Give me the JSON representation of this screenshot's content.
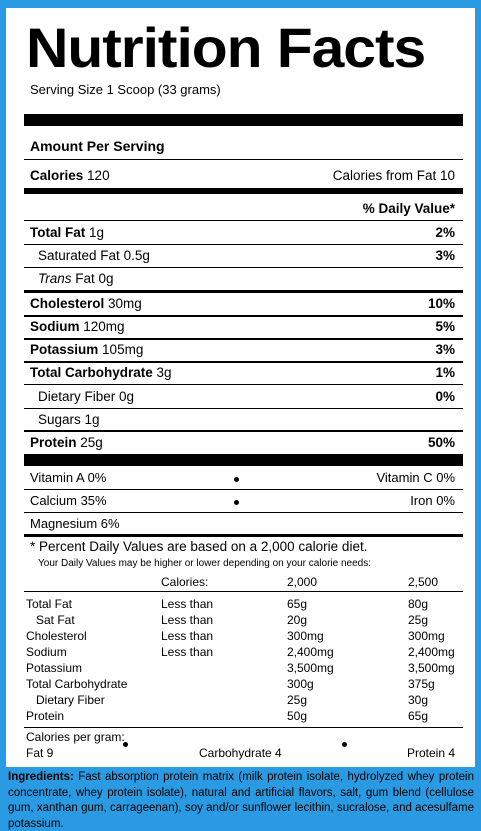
{
  "title": "Nutrition Facts",
  "serving_size": "Serving Size 1 Scoop (33 grams)",
  "amount_per_serving": "Amount Per Serving",
  "calories_label": "Calories",
  "calories_value": "120",
  "calories_from_fat": "Calories from Fat 10",
  "daily_value_header": "% Daily Value*",
  "nutrients": [
    {
      "label": "Total Fat",
      "amount": "1g",
      "dv": "2%"
    },
    {
      "label": "Saturated Fat",
      "amount": "0.5g",
      "dv": "3%"
    },
    {
      "label": "Trans",
      "amount": "Fat 0g",
      "dv": ""
    },
    {
      "label": "Cholesterol",
      "amount": "30mg",
      "dv": "10%"
    },
    {
      "label": "Sodium",
      "amount": "120mg",
      "dv": "5%"
    },
    {
      "label": "Potassium",
      "amount": "105mg",
      "dv": "3%"
    },
    {
      "label": "Total Carbohydrate",
      "amount": "3g",
      "dv": "1%"
    },
    {
      "label": "Dietary Fiber",
      "amount": "0g",
      "dv": "0%"
    },
    {
      "label": "Sugars",
      "amount": "1g",
      "dv": ""
    },
    {
      "label": "Protein",
      "amount": "25g",
      "dv": "50%"
    }
  ],
  "vitamins": {
    "vitamin_a": "Vitamin A 0%",
    "vitamin_c": "Vitamin C 0%",
    "calcium": "Calcium 35%",
    "iron": "Iron 0%",
    "magnesium": "Magnesium 6%"
  },
  "footnote_main": "* Percent Daily Values are based on a 2,000 calorie diet.",
  "footnote_sub": "Your Daily Values may be higher or lower depending on your calorie needs:",
  "dv_table": {
    "header": {
      "label": "",
      "qual": "Calories:",
      "c2000": "2,000",
      "c2500": "2,500"
    },
    "rows": [
      {
        "label": "Total Fat",
        "qual": "Less than",
        "c2000": "65g",
        "c2500": "80g"
      },
      {
        "label": "Sat Fat",
        "qual": "Less than",
        "c2000": "20g",
        "c2500": "25g"
      },
      {
        "label": "Cholesterol",
        "qual": "Less than",
        "c2000": "300mg",
        "c2500": "300mg"
      },
      {
        "label": "Sodium",
        "qual": "Less than",
        "c2000": "2,400mg",
        "c2500": "2,400mg"
      },
      {
        "label": "Potassium",
        "qual": "",
        "c2000": "3,500mg",
        "c2500": "3,500mg"
      },
      {
        "label": "Total Carbohydrate",
        "qual": "",
        "c2000": "300g",
        "c2500": "375g"
      },
      {
        "label": "Dietary Fiber",
        "qual": "",
        "c2000": "25g",
        "c2500": "30g"
      },
      {
        "label": "Protein",
        "qual": "",
        "c2000": "50g",
        "c2500": "65g"
      }
    ]
  },
  "calories_per_gram": {
    "label": "Calories per gram:",
    "fat": "Fat 9",
    "carb": "Carbohydrate 4",
    "protein": "Protein 4"
  },
  "ingredients": {
    "label": "Ingredients:",
    "text": " Fast absorption protein matrix (milk protein isolate, hydrolyzed whey protein concentrate, whey protein isolate), natural and artificial flavors, salt, gum blend (cellulose gum, xanthan gum, carrageenan), soy and/or sunflower lecithin, sucralose, and acesulfame potassium."
  },
  "colors": {
    "background": "#2a9be3",
    "panel": "#ffffff",
    "text": "#000000"
  }
}
